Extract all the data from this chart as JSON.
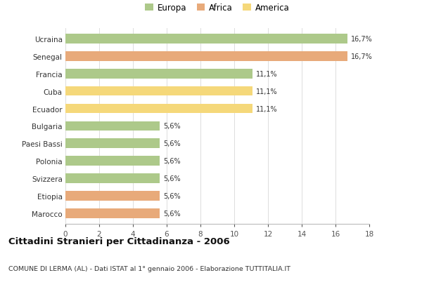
{
  "categories": [
    "Ucraina",
    "Senegal",
    "Francia",
    "Cuba",
    "Ecuador",
    "Bulgaria",
    "Paesi Bassi",
    "Polonia",
    "Svizzera",
    "Etiopia",
    "Marocco"
  ],
  "values": [
    16.7,
    16.7,
    11.1,
    11.1,
    11.1,
    5.6,
    5.6,
    5.6,
    5.6,
    5.6,
    5.6
  ],
  "labels": [
    "16,7%",
    "16,7%",
    "11,1%",
    "11,1%",
    "11,1%",
    "5,6%",
    "5,6%",
    "5,6%",
    "5,6%",
    "5,6%",
    "5,6%"
  ],
  "colors": [
    "#adc98a",
    "#e8aa7a",
    "#adc98a",
    "#f5d87a",
    "#f5d87a",
    "#adc98a",
    "#adc98a",
    "#adc98a",
    "#adc98a",
    "#e8aa7a",
    "#e8aa7a"
  ],
  "legend_labels": [
    "Europa",
    "Africa",
    "America"
  ],
  "legend_colors": [
    "#adc98a",
    "#e8aa7a",
    "#f5d87a"
  ],
  "title": "Cittadini Stranieri per Cittadinanza - 2006",
  "subtitle": "COMUNE DI LERMA (AL) - Dati ISTAT al 1° gennaio 2006 - Elaborazione TUTTITALIA.IT",
  "xlim": [
    0,
    18
  ],
  "xticks": [
    0,
    2,
    4,
    6,
    8,
    10,
    12,
    14,
    16,
    18
  ],
  "bg_color": "#ffffff",
  "grid_color": "#dddddd",
  "bar_height": 0.55
}
